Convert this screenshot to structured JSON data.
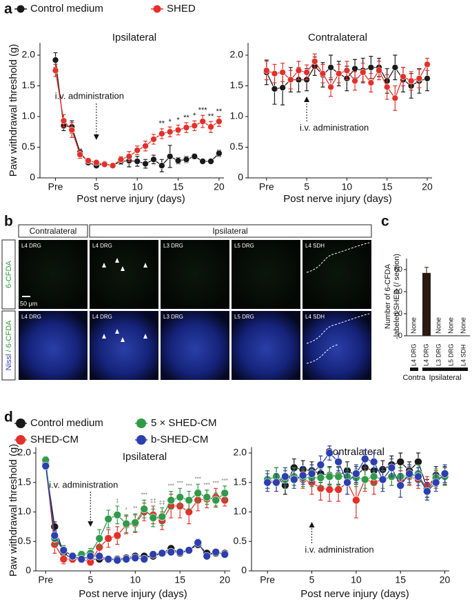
{
  "panel_labels": [
    "a",
    "b",
    "c",
    "d"
  ],
  "panel_b": {
    "groups": [
      "Contralateral",
      "Ipsilateral"
    ],
    "columns": [
      "L4 DRG",
      "L4 DRG",
      "L3 DRG",
      "L5 DRG",
      "L4 SDH"
    ],
    "rows": [
      [
        "6-CFDA"
      ],
      [
        "Nissl",
        " / 6-CFDA"
      ]
    ],
    "scale_bar": "50 μm"
  },
  "chart_data": [
    {
      "type": "line",
      "title": "Ipsilateral",
      "xlabel": "Post nerve injury (days)",
      "ylabel": "Paw withdrawal threshold (g)",
      "x": [
        0,
        1,
        2,
        3,
        4,
        5,
        6,
        7,
        8,
        9,
        10,
        11,
        12,
        13,
        14,
        15,
        16,
        17,
        18,
        19,
        20
      ],
      "xlim": [
        -1.9,
        20.6
      ],
      "xticks": [
        {
          "value": 0,
          "label": "Pre"
        },
        5,
        10,
        15,
        20
      ],
      "ylim": [
        0,
        2.2
      ],
      "yticks": [
        0,
        0.5,
        {
          "value": 1,
          "label": "1.0"
        },
        1.5,
        {
          "value": 2,
          "label": "2.0"
        }
      ],
      "series": [
        {
          "name": "Control medium",
          "color": "#1a1a1a",
          "values": [
            1.92,
            0.85,
            0.83,
            0.42,
            0.25,
            0.2,
            0.23,
            0.2,
            0.27,
            0.28,
            0.27,
            0.23,
            0.3,
            0.2,
            0.35,
            0.28,
            0.3,
            0.35,
            0.27,
            0.27,
            0.4
          ],
          "errors": [
            0.12,
            0.08,
            0.1,
            0.05,
            0.04,
            0.03,
            0.03,
            0.03,
            0.05,
            0.1,
            0.08,
            0.07,
            0.07,
            0.1,
            0.18,
            0.05,
            0.05,
            0.04,
            0.03,
            0.03,
            0.05
          ]
        },
        {
          "name": "SHED",
          "color": "#e3302a",
          "values": [
            1.75,
            0.93,
            0.78,
            0.38,
            0.28,
            0.25,
            0.22,
            0.2,
            0.3,
            0.35,
            0.45,
            0.52,
            0.63,
            0.72,
            0.75,
            0.78,
            0.82,
            0.85,
            0.92,
            0.83,
            0.92
          ],
          "errors": [
            0.1,
            0.1,
            0.12,
            0.06,
            0.04,
            0.03,
            0.03,
            0.03,
            0.05,
            0.08,
            0.07,
            0.08,
            0.08,
            0.08,
            0.08,
            0.08,
            0.08,
            0.08,
            0.1,
            0.09,
            0.08
          ]
        }
      ],
      "annotation": {
        "text": "i.v. administration",
        "x": 5
      },
      "significance": {
        "x": [
          13,
          14,
          15,
          16,
          17,
          18,
          19,
          20
        ],
        "labels": [
          "**",
          "*",
          "*",
          "**",
          "*",
          "***",
          "**",
          "**"
        ]
      }
    },
    {
      "type": "line",
      "title": "Contralateral",
      "xlabel": "Post nerve injury (days)",
      "x": [
        0,
        1,
        2,
        3,
        4,
        5,
        6,
        7,
        8,
        9,
        10,
        11,
        12,
        13,
        14,
        15,
        16,
        17,
        18,
        19,
        20
      ],
      "xlim": [
        -2.3,
        20.6
      ],
      "xticks": [
        {
          "value": 0,
          "label": "Pre"
        },
        5,
        10,
        15,
        20
      ],
      "ylim": [
        0,
        2.2
      ],
      "yticks": [
        0,
        0.5,
        {
          "value": 1,
          "label": "1.0"
        },
        1.5,
        {
          "value": 2,
          "label": "2.0"
        }
      ],
      "series": [
        {
          "color": "#1a1a1a",
          "values": [
            1.72,
            1.45,
            1.47,
            1.6,
            1.6,
            1.6,
            1.82,
            1.68,
            1.8,
            1.7,
            1.62,
            1.78,
            1.75,
            1.8,
            1.8,
            1.58,
            1.8,
            1.6,
            1.5,
            1.58,
            1.62
          ],
          "errors": [
            0.2,
            0.25,
            0.28,
            0.2,
            0.2,
            0.18,
            0.15,
            0.2,
            0.2,
            0.2,
            0.2,
            0.15,
            0.2,
            0.18,
            0.15,
            0.2,
            0.2,
            0.2,
            0.2,
            0.2,
            0.2
          ]
        },
        {
          "color": "#e3302a",
          "values": [
            1.75,
            1.7,
            1.72,
            1.6,
            1.75,
            1.72,
            1.9,
            1.7,
            1.48,
            1.7,
            1.75,
            1.58,
            1.72,
            1.55,
            1.75,
            1.48,
            1.3,
            1.65,
            1.58,
            1.62,
            1.85
          ],
          "errors": [
            0.15,
            0.15,
            0.15,
            0.15,
            0.15,
            0.12,
            0.12,
            0.15,
            0.15,
            0.15,
            0.15,
            0.15,
            0.15,
            0.15,
            0.15,
            0.2,
            0.2,
            0.15,
            0.15,
            0.15,
            0.1
          ]
        }
      ],
      "annotation": {
        "text": "i.v. administration",
        "x": 5
      }
    },
    {
      "type": "bar",
      "ylabel": [
        "Number of 6-CFDA",
        "-labeled SHED (/ section)"
      ],
      "categories": [
        "L4 DRG",
        "L4 DRG",
        "L3 DRG",
        "L5 DRG",
        "L4 SDH"
      ],
      "values": [
        null,
        57,
        null,
        null,
        null
      ],
      "errors": [
        null,
        5,
        null,
        null,
        null
      ],
      "value_labels": [
        "None",
        null,
        "None",
        "None",
        "None"
      ],
      "color": "#2a1a14",
      "groups": [
        {
          "label": "Contra",
          "count": 1
        },
        {
          "label": "Ipsilateral",
          "count": 4
        }
      ],
      "ylim": [
        0,
        70
      ],
      "yticks": [
        0,
        20,
        40,
        60
      ]
    },
    {
      "type": "line",
      "title": "Ipsilateral",
      "xlabel": "Post nerve injury (days)",
      "ylabel": "Paw withdrawal threshold (g)",
      "x": [
        0,
        1,
        2,
        3,
        4,
        5,
        6,
        7,
        8,
        9,
        10,
        11,
        12,
        13,
        14,
        15,
        16,
        17,
        18,
        19,
        20
      ],
      "xlim": [
        -1.1,
        20.6
      ],
      "xticks": [
        {
          "value": 0,
          "label": "Pre"
        },
        5,
        10,
        15,
        20
      ],
      "ylim": [
        0,
        2.1
      ],
      "yticks": [
        0,
        0.5,
        {
          "value": 1,
          "label": "1.0"
        },
        1.5,
        {
          "value": 2,
          "label": "2.0"
        }
      ],
      "series": [
        {
          "name": "Control medium",
          "color": "#1a1a1a",
          "values": [
            1.8,
            0.75,
            0.3,
            0.2,
            0.25,
            0.2,
            0.2,
            0.2,
            0.2,
            0.22,
            0.25,
            0.25,
            0.25,
            0.3,
            0.38,
            0.3,
            0.35,
            0.45,
            0.3,
            0.3,
            0.3
          ],
          "errors": [
            0.06,
            0.08,
            0.06,
            0.05,
            0.05,
            0.05,
            0.04,
            0.04,
            0.04,
            0.05,
            0.05,
            0.05,
            0.05,
            0.05,
            0.05,
            0.05,
            0.05,
            0.06,
            0.05,
            0.05,
            0.05
          ]
        },
        {
          "name": "SHED-CM",
          "color": "#e3302a",
          "values": [
            1.82,
            0.45,
            0.2,
            0.2,
            0.2,
            0.15,
            0.4,
            0.55,
            0.6,
            0.78,
            0.8,
            1.0,
            0.95,
            0.85,
            1.1,
            1.1,
            1.0,
            1.2,
            1.22,
            1.25,
            1.2
          ],
          "errors": [
            0.06,
            0.15,
            0.08,
            0.06,
            0.06,
            0.06,
            0.15,
            0.15,
            0.15,
            0.15,
            0.15,
            0.15,
            0.15,
            0.15,
            0.2,
            0.2,
            0.2,
            0.18,
            0.15,
            0.15,
            0.1
          ]
        },
        {
          "name": "5 × SHED-CM",
          "color": "#2f9a48",
          "values": [
            1.88,
            0.55,
            0.35,
            0.25,
            0.28,
            0.3,
            0.55,
            0.88,
            0.95,
            0.8,
            0.82,
            1.05,
            0.9,
            0.92,
            1.2,
            1.25,
            1.2,
            1.32,
            1.25,
            1.2,
            1.32
          ],
          "errors": [
            0.06,
            0.12,
            0.08,
            0.06,
            0.06,
            0.08,
            0.15,
            0.15,
            0.15,
            0.15,
            0.15,
            0.15,
            0.15,
            0.15,
            0.15,
            0.15,
            0.15,
            0.15,
            0.12,
            0.12,
            0.12
          ]
        },
        {
          "name": "b-SHED-CM",
          "color": "#2c3fae",
          "values": [
            1.78,
            0.6,
            0.35,
            0.25,
            0.2,
            0.25,
            0.25,
            0.2,
            0.18,
            0.2,
            0.22,
            0.2,
            0.28,
            0.3,
            0.32,
            0.32,
            0.35,
            0.48,
            0.25,
            0.32,
            0.28
          ],
          "errors": [
            0.06,
            0.08,
            0.06,
            0.05,
            0.05,
            0.05,
            0.05,
            0.04,
            0.04,
            0.05,
            0.05,
            0.05,
            0.05,
            0.05,
            0.05,
            0.05,
            0.05,
            0.06,
            0.05,
            0.05,
            0.05
          ]
        }
      ],
      "annotation": {
        "text": "i.v. administration",
        "x": 5
      },
      "significance": {
        "x": [
          8,
          9,
          10,
          11,
          12,
          13,
          14,
          15,
          16,
          17,
          18,
          19,
          20
        ],
        "labels": [
          "‡",
          "*",
          "**",
          "***",
          "‡‡",
          "‡‡",
          "***",
          "***",
          "***",
          "***",
          "***",
          "***",
          "***"
        ]
      }
    },
    {
      "type": "line",
      "title": "Contralateral",
      "xlabel": "Post nerve injury (days)",
      "x": [
        0,
        1,
        2,
        3,
        4,
        5,
        6,
        7,
        8,
        9,
        10,
        11,
        12,
        13,
        14,
        15,
        16,
        17,
        18,
        19,
        20
      ],
      "xlim": [
        -1.8,
        20.5
      ],
      "xticks": [
        {
          "value": 0,
          "label": "Pre"
        },
        5,
        10,
        15,
        20
      ],
      "ylim": [
        0,
        2.1
      ],
      "yticks": [
        0,
        0.5,
        {
          "value": 1,
          "label": "1.0"
        },
        1.5,
        {
          "value": 2,
          "label": "2.0"
        }
      ],
      "series": [
        {
          "color": "#1a1a1a",
          "values": [
            1.55,
            1.6,
            1.45,
            1.75,
            1.72,
            1.7,
            1.65,
            1.62,
            1.62,
            1.7,
            1.62,
            1.75,
            1.7,
            1.72,
            1.8,
            1.85,
            1.7,
            1.85,
            1.4,
            1.62,
            1.62
          ],
          "errors": [
            0.15,
            0.15,
            0.15,
            0.15,
            0.15,
            0.15,
            0.15,
            0.15,
            0.15,
            0.15,
            0.15,
            0.15,
            0.15,
            0.15,
            0.15,
            0.15,
            0.15,
            0.15,
            0.15,
            0.15,
            0.15
          ]
        },
        {
          "color": "#e3302a",
          "values": [
            1.55,
            1.5,
            1.55,
            1.6,
            1.55,
            1.5,
            1.4,
            1.38,
            1.38,
            1.5,
            1.2,
            1.55,
            1.5,
            1.55,
            1.6,
            1.55,
            1.6,
            1.55,
            1.45,
            1.55,
            1.6
          ],
          "errors": [
            0.15,
            0.15,
            0.15,
            0.15,
            0.15,
            0.2,
            0.2,
            0.2,
            0.2,
            0.2,
            0.3,
            0.2,
            0.2,
            0.2,
            0.15,
            0.15,
            0.15,
            0.15,
            0.15,
            0.15,
            0.15
          ]
        },
        {
          "color": "#2f9a48",
          "values": [
            1.55,
            1.6,
            1.55,
            1.6,
            1.58,
            1.58,
            1.58,
            1.6,
            1.6,
            1.6,
            1.58,
            1.55,
            1.6,
            1.55,
            1.6,
            1.6,
            1.62,
            1.65,
            1.35,
            1.58,
            1.6
          ],
          "errors": [
            0.15,
            0.15,
            0.15,
            0.15,
            0.15,
            0.15,
            0.15,
            0.15,
            0.15,
            0.15,
            0.15,
            0.15,
            0.15,
            0.15,
            0.15,
            0.15,
            0.15,
            0.15,
            0.15,
            0.15,
            0.15
          ]
        },
        {
          "color": "#2c3fae",
          "values": [
            1.5,
            1.5,
            1.6,
            1.55,
            1.62,
            1.65,
            1.8,
            2.0,
            1.85,
            1.5,
            1.65,
            1.9,
            1.85,
            1.55,
            1.75,
            1.45,
            1.65,
            1.6,
            1.35,
            1.5,
            1.65
          ],
          "errors": [
            0.15,
            0.15,
            0.15,
            0.15,
            0.15,
            0.15,
            0.15,
            0.12,
            0.15,
            0.2,
            0.15,
            0.15,
            0.15,
            0.2,
            0.15,
            0.2,
            0.15,
            0.15,
            0.15,
            0.15,
            0.15
          ]
        }
      ],
      "annotation": {
        "text": "i.v. administration",
        "x": 5
      }
    }
  ]
}
